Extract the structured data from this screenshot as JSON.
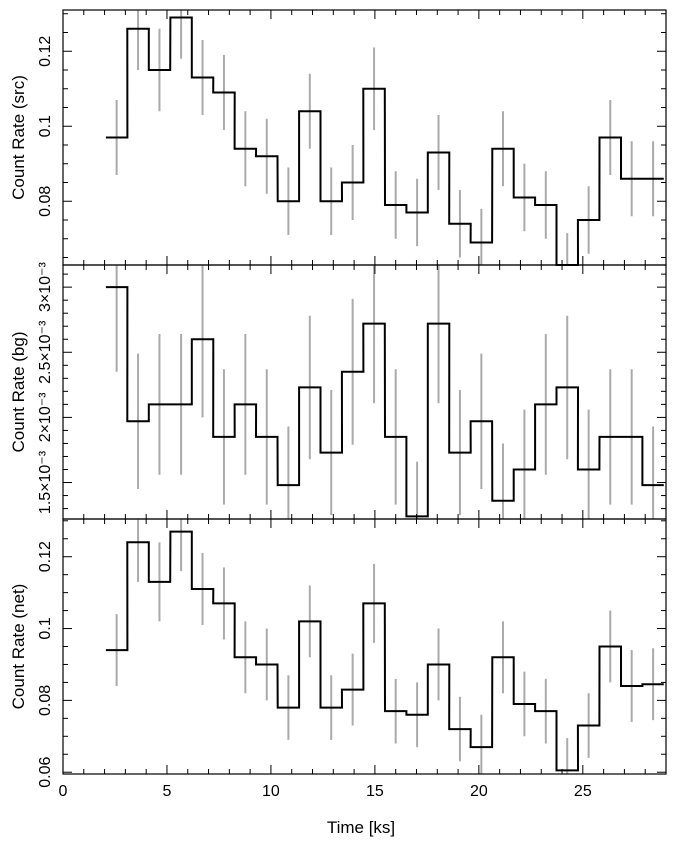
{
  "chart_data": [
    {
      "type": "line",
      "ylabel": "Count Rate (src)",
      "ylim": [
        0.063,
        0.131
      ],
      "yticks": [
        0.08,
        0.1,
        0.12
      ],
      "ytick_labels": [
        "0.08",
        "0.1",
        "0.12"
      ],
      "xlim": [
        0,
        29
      ],
      "bin_width_ks": 1.032,
      "x": [
        2.58,
        3.61,
        4.64,
        5.68,
        6.71,
        7.74,
        8.77,
        9.8,
        10.84,
        11.87,
        12.9,
        13.93,
        14.96,
        16.0,
        17.03,
        18.06,
        19.09,
        20.12,
        21.16,
        22.19,
        23.22,
        24.25,
        25.28,
        26.32,
        27.35,
        28.38
      ],
      "values": [
        0.097,
        0.126,
        0.115,
        0.129,
        0.113,
        0.109,
        0.094,
        0.092,
        0.08,
        0.104,
        0.08,
        0.085,
        0.11,
        0.079,
        0.077,
        0.093,
        0.074,
        0.069,
        0.094,
        0.081,
        0.079,
        0.0625,
        0.075,
        0.097,
        0.086,
        0.086
      ],
      "errors": [
        0.01,
        0.011,
        0.011,
        0.011,
        0.01,
        0.01,
        0.01,
        0.01,
        0.009,
        0.01,
        0.009,
        0.01,
        0.011,
        0.009,
        0.009,
        0.01,
        0.009,
        0.009,
        0.01,
        0.009,
        0.009,
        0.009,
        0.009,
        0.01,
        0.01,
        0.01
      ]
    },
    {
      "type": "line",
      "ylabel": "Count Rate (bg)",
      "ylim": [
        0.00122,
        0.00317
      ],
      "yticks": [
        0.0015,
        0.002,
        0.0025,
        0.003
      ],
      "ytick_labels": [
        "1.5×10⁻³",
        "2×10⁻³",
        "2.5×10⁻³",
        "3×10⁻³"
      ],
      "xlim": [
        0,
        29
      ],
      "x": [
        2.58,
        3.61,
        4.64,
        5.68,
        6.71,
        7.74,
        8.77,
        9.8,
        10.84,
        11.87,
        12.9,
        13.93,
        14.96,
        16.0,
        17.03,
        18.06,
        19.09,
        20.12,
        21.16,
        22.19,
        23.22,
        24.25,
        25.28,
        26.32,
        27.35,
        28.38
      ],
      "values": [
        0.003,
        0.00197,
        0.0021,
        0.0021,
        0.0026,
        0.00185,
        0.0021,
        0.00185,
        0.00148,
        0.00223,
        0.00173,
        0.00235,
        0.00272,
        0.00185,
        0.00124,
        0.00272,
        0.00173,
        0.00197,
        0.00136,
        0.0016,
        0.0021,
        0.00223,
        0.0016,
        0.00185,
        0.00185,
        0.00148
      ],
      "errors": [
        0.00065,
        0.00052,
        0.00054,
        0.00054,
        0.0006,
        0.00052,
        0.00054,
        0.00052,
        0.00045,
        0.00055,
        0.00048,
        0.00056,
        0.00061,
        0.00052,
        0.00042,
        0.00061,
        0.00048,
        0.00052,
        0.00044,
        0.00046,
        0.00054,
        0.00055,
        0.00046,
        0.00052,
        0.00052,
        0.00045
      ]
    },
    {
      "type": "line",
      "ylabel": "Count Rate (net)",
      "xlabel": "Time [ks]",
      "ylim": [
        0.0595,
        0.1305
      ],
      "yticks": [
        0.06,
        0.08,
        0.1,
        0.12
      ],
      "ytick_labels": [
        "0.06",
        "0.08",
        "0.1",
        "0.12"
      ],
      "xlim": [
        0,
        29
      ],
      "xticks": [
        0,
        5,
        10,
        15,
        20,
        25
      ],
      "xtick_labels": [
        "0",
        "5",
        "10",
        "15",
        "20",
        "25"
      ],
      "x": [
        2.58,
        3.61,
        4.64,
        5.68,
        6.71,
        7.74,
        8.77,
        9.8,
        10.84,
        11.87,
        12.9,
        13.93,
        14.96,
        16.0,
        17.03,
        18.06,
        19.09,
        20.12,
        21.16,
        22.19,
        23.22,
        24.25,
        25.28,
        26.32,
        27.35,
        28.38
      ],
      "values": [
        0.094,
        0.124,
        0.113,
        0.127,
        0.111,
        0.107,
        0.092,
        0.09,
        0.078,
        0.102,
        0.078,
        0.083,
        0.107,
        0.077,
        0.076,
        0.09,
        0.072,
        0.067,
        0.092,
        0.079,
        0.077,
        0.0605,
        0.073,
        0.095,
        0.084,
        0.0845
      ],
      "errors": [
        0.01,
        0.011,
        0.011,
        0.011,
        0.01,
        0.01,
        0.01,
        0.01,
        0.009,
        0.01,
        0.009,
        0.01,
        0.011,
        0.009,
        0.009,
        0.01,
        0.009,
        0.009,
        0.01,
        0.009,
        0.009,
        0.009,
        0.009,
        0.01,
        0.01,
        0.01
      ]
    }
  ],
  "colors": {
    "step_line": "#000000",
    "error_bar": "#aaaaaa",
    "frame": "#000000"
  }
}
